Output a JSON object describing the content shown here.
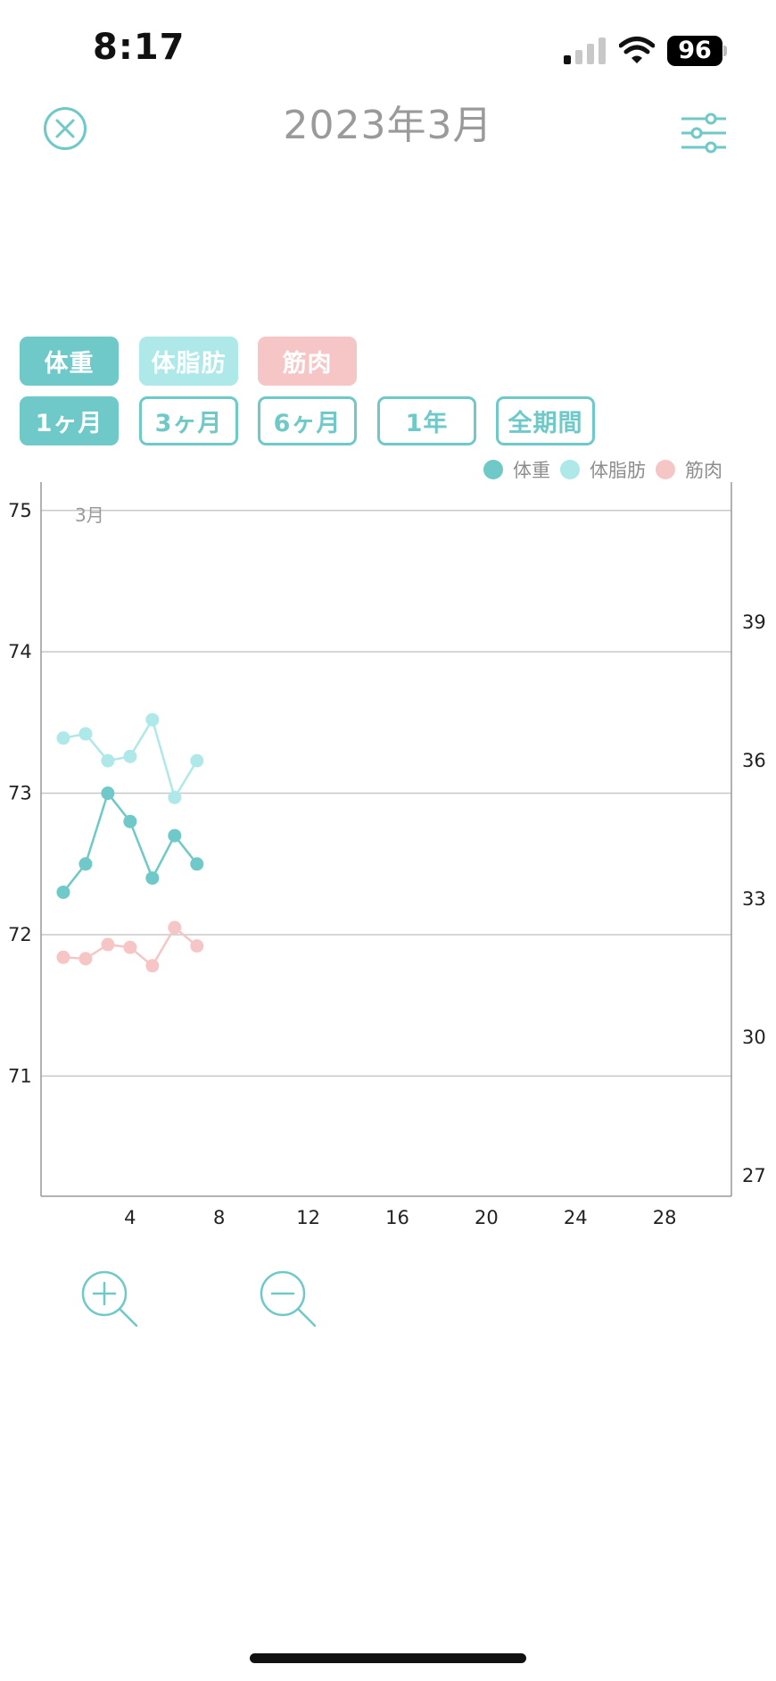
{
  "status_bar": {
    "time": "8:17",
    "battery": "96"
  },
  "header": {
    "title": "2023年3月",
    "close_icon": "close-circle-icon",
    "filter_icon": "sliders-icon"
  },
  "metric_tabs": [
    {
      "label": "体重",
      "color": "#6ec9c8",
      "active": true
    },
    {
      "label": "体脂肪",
      "color": "#aee8e8",
      "active": true
    },
    {
      "label": "筋肉",
      "color": "#f6c6c6",
      "active": true
    }
  ],
  "period_tabs": [
    {
      "label": "1ヶ月",
      "active": true
    },
    {
      "label": "3ヶ月",
      "active": false
    },
    {
      "label": "6ヶ月",
      "active": false
    },
    {
      "label": "1年",
      "active": false
    },
    {
      "label": "全期間",
      "active": false
    }
  ],
  "legend": [
    {
      "label": "体重",
      "color": "#6ec9c8"
    },
    {
      "label": "体脂肪",
      "color": "#aee8e8"
    },
    {
      "label": "筋肉",
      "color": "#f6c6c6"
    }
  ],
  "chart_data": {
    "type": "line",
    "month_label": "3月",
    "x_ticks": [
      4,
      8,
      12,
      16,
      20,
      24,
      28
    ],
    "x_range": [
      0,
      31
    ],
    "left_y_ticks": [
      71,
      72,
      73,
      74,
      75
    ],
    "left_y_range": [
      70.15,
      75.15
    ],
    "right_y_ticks": [
      27,
      30,
      33,
      36,
      39
    ],
    "grid": true,
    "legend_position": "top-right",
    "series": [
      {
        "name": "体重",
        "color": "#6ec9c8",
        "axis": "left",
        "x": [
          1,
          2,
          3,
          4,
          5,
          6,
          7
        ],
        "values": [
          72.3,
          72.5,
          73.0,
          72.8,
          72.4,
          72.7,
          72.5
        ]
      },
      {
        "name": "体脂肪",
        "color": "#aee8e8",
        "axis": "left",
        "x": [
          1,
          2,
          3,
          4,
          5,
          6,
          7
        ],
        "values": [
          73.39,
          73.42,
          73.23,
          73.26,
          73.52,
          72.97,
          73.23
        ]
      },
      {
        "name": "筋肉",
        "color": "#f6c6c6",
        "axis": "left",
        "x": [
          1,
          2,
          3,
          4,
          5,
          6,
          7
        ],
        "values": [
          71.84,
          71.83,
          71.93,
          71.91,
          71.78,
          72.05,
          71.92
        ]
      }
    ]
  }
}
